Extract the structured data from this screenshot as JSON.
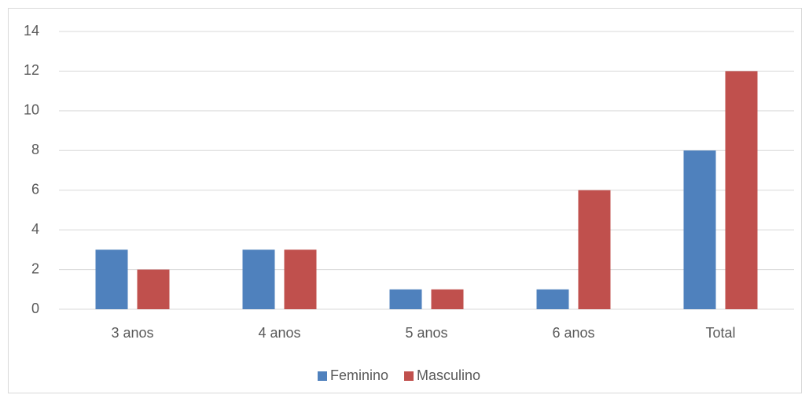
{
  "chart_data": {
    "type": "bar",
    "categories": [
      "3 anos",
      "4 anos",
      "5 anos",
      "6 anos",
      "Total"
    ],
    "series": [
      {
        "name": "Feminino",
        "color": "#4f81bd",
        "values": [
          3,
          3,
          1,
          1,
          8
        ]
      },
      {
        "name": "Masculino",
        "color": "#c0504d",
        "values": [
          2,
          3,
          1,
          6,
          12
        ]
      }
    ],
    "ylim": [
      0,
      14
    ],
    "yticks": [
      0,
      2,
      4,
      6,
      8,
      10,
      12,
      14
    ],
    "grid": true,
    "legend": "bottom"
  }
}
